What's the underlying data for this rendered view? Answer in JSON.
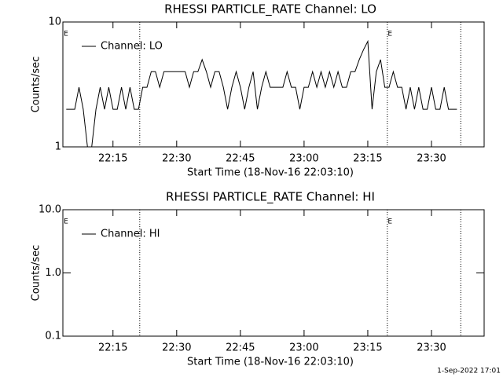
{
  "chart_data": [
    {
      "type": "line",
      "title": "RHESSI PARTICLE_RATE Channel: LO",
      "xlabel": "Start Time (18-Nov-16 22:03:10)",
      "ylabel": "Counts/sec",
      "x": [
        4,
        5,
        6,
        7,
        8,
        9,
        10,
        11,
        12,
        13,
        14,
        15,
        16,
        17,
        18,
        19,
        20,
        21,
        22,
        23,
        24,
        25,
        26,
        27,
        28,
        29,
        30,
        31,
        32,
        33,
        34,
        35,
        36,
        37,
        38,
        39,
        40,
        41,
        42,
        43,
        44,
        45,
        46,
        47,
        48,
        49,
        50,
        51,
        52,
        53,
        54,
        55,
        56,
        57,
        58,
        59,
        60,
        61,
        62,
        63,
        64,
        65,
        66,
        67,
        68,
        69,
        70,
        71,
        72,
        73,
        74,
        75,
        76,
        77,
        78,
        79,
        80,
        81,
        82,
        83,
        84,
        85,
        86,
        87,
        88,
        89,
        90,
        91,
        92,
        93,
        94,
        95,
        96
      ],
      "series": [
        {
          "name": "Channel: LO",
          "color": "#000000",
          "values": [
            2,
            2,
            2,
            3,
            2,
            1,
            1,
            2,
            3,
            2,
            3,
            2,
            2,
            3,
            2,
            3,
            2,
            2,
            3,
            3,
            4,
            4,
            3,
            4,
            4,
            4,
            4,
            4,
            4,
            3,
            4,
            4,
            5,
            4,
            3,
            4,
            4,
            3,
            2,
            3,
            4,
            3,
            2,
            3,
            4,
            2,
            3,
            4,
            3,
            3,
            3,
            3,
            4,
            3,
            3,
            2,
            3,
            3,
            4,
            3,
            4,
            3,
            4,
            3,
            4,
            3,
            3,
            4,
            4,
            5,
            6,
            7,
            2,
            4,
            5,
            3,
            3,
            4,
            3,
            3,
            2,
            3,
            2,
            3,
            2,
            2,
            3,
            2,
            2,
            3,
            2,
            2,
            2
          ]
        }
      ],
      "xlim": [
        3.2,
        102.4
      ],
      "xticks": [
        {
          "value": 15,
          "label": "22:15"
        },
        {
          "value": 30,
          "label": "22:30"
        },
        {
          "value": 45,
          "label": "22:45"
        },
        {
          "value": 60,
          "label": "23:00"
        },
        {
          "value": 75,
          "label": "23:15"
        },
        {
          "value": 90,
          "label": "23:30"
        }
      ],
      "ylim": [
        1,
        10
      ],
      "yticks": [
        1,
        10
      ],
      "log_y": true,
      "vlines": [
        21.3,
        79.6,
        96.9
      ],
      "annotations": [
        {
          "text": "E",
          "x": 3.4
        },
        {
          "text": "E",
          "x": 79.7
        }
      ],
      "legend": "upper left"
    },
    {
      "type": "line",
      "title": "RHESSI PARTICLE_RATE Channel: HI",
      "xlabel": "Start Time (18-Nov-16 22:03:10)",
      "ylabel": "Counts/sec",
      "x": [],
      "series": [
        {
          "name": "Channel: HI",
          "color": "#000000",
          "values": []
        }
      ],
      "xlim": [
        3.2,
        102.4
      ],
      "xticks": [
        {
          "value": 15,
          "label": "22:15"
        },
        {
          "value": 30,
          "label": "22:30"
        },
        {
          "value": 45,
          "label": "22:45"
        },
        {
          "value": 60,
          "label": "23:00"
        },
        {
          "value": 75,
          "label": "23:15"
        },
        {
          "value": 90,
          "label": "23:30"
        }
      ],
      "ylim": [
        0.1,
        10
      ],
      "yticks": [
        0.1,
        {
          "value": 1,
          "label": "1.0"
        },
        {
          "value": 10,
          "label": "10.0"
        }
      ],
      "log_y": true,
      "vlines": [
        21.3,
        79.6,
        96.9
      ],
      "annotations": [
        {
          "text": "E",
          "x": 3.4
        },
        {
          "text": "E",
          "x": 79.7
        }
      ],
      "legend": "upper left"
    }
  ],
  "footer": "1-Sep-2022 17:01"
}
